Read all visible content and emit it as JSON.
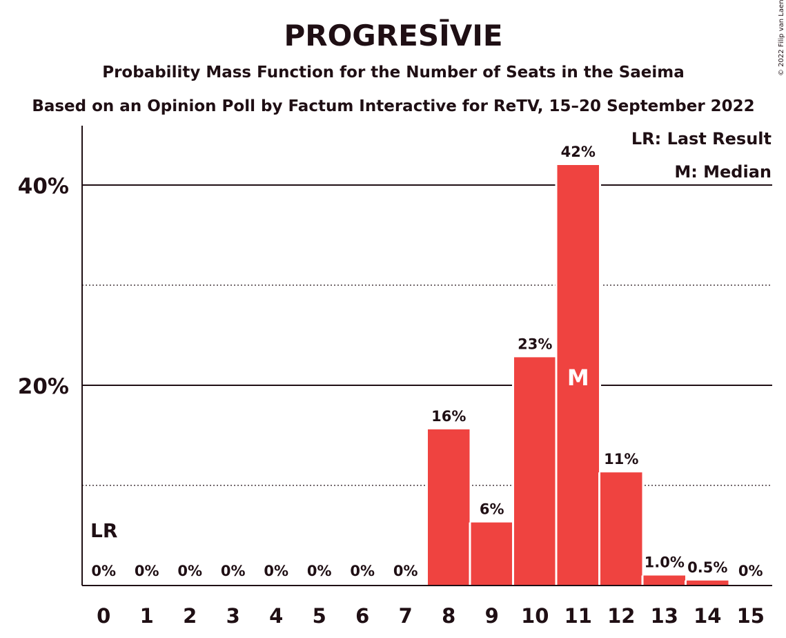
{
  "chart_data": {
    "type": "bar",
    "title": "PROGRESĪVIE",
    "subtitle": "Probability Mass Function for the Number of Seats in the Saeima",
    "subtitle2": "Based on an Opinion Poll by Factum Interactive for ReTV, 15–20 September 2022",
    "categories": [
      "0",
      "1",
      "2",
      "3",
      "4",
      "5",
      "6",
      "7",
      "8",
      "9",
      "10",
      "11",
      "12",
      "13",
      "14",
      "15"
    ],
    "values": [
      0,
      0,
      0,
      0,
      0,
      0,
      0,
      0,
      15.6,
      6.3,
      22.8,
      42.0,
      11.3,
      1.0,
      0.5,
      0
    ],
    "value_labels": [
      "0%",
      "0%",
      "0%",
      "0%",
      "0%",
      "0%",
      "0%",
      "0%",
      "16%",
      "6%",
      "23%",
      "42%",
      "11%",
      "1.0%",
      "0.5%",
      "0%"
    ],
    "ylim": [
      0,
      46
    ],
    "yticks": [
      {
        "value": 20,
        "label": "20%"
      },
      {
        "value": 40,
        "label": "40%"
      }
    ],
    "dotted_gridlines": [
      10,
      30
    ],
    "last_result": {
      "category": "0",
      "marker": "LR"
    },
    "median": {
      "category": "11",
      "marker": "M"
    },
    "legend": {
      "placement": "top-right",
      "entries": [
        "LR: Last Result",
        "M: Median"
      ]
    },
    "bar_color": "#ef4340",
    "text_color": "#1f0f14",
    "copyright": "© 2022 Filip van Laenen"
  }
}
